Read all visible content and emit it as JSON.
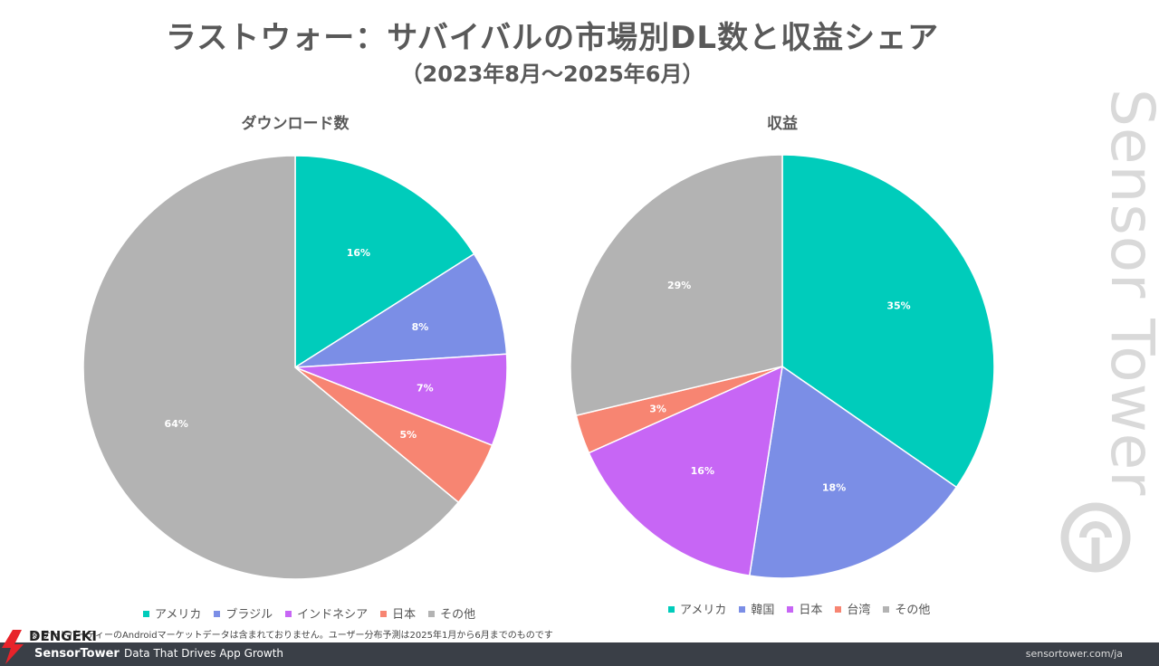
{
  "title": "ラストウォー：サバイバルの市場別DL数と収益シェア",
  "subtitle": "（2023年8月〜2025年6月）",
  "chart_data": [
    {
      "type": "pie",
      "title": "ダウンロード数",
      "categories": [
        "アメリカ",
        "ブラジル",
        "インドネシア",
        "日本",
        "その他"
      ],
      "values": [
        16,
        8,
        7,
        5,
        64
      ],
      "labels": [
        "16%",
        "8%",
        "7%",
        "5%",
        "64%"
      ],
      "colors": [
        "#00ccbb",
        "#7b8ee6",
        "#c766f5",
        "#f78572",
        "#b3b3b3"
      ],
      "legend": "bottom"
    },
    {
      "type": "pie",
      "title": "収益",
      "categories": [
        "アメリカ",
        "韓国",
        "日本",
        "台湾",
        "その他"
      ],
      "values": [
        35,
        18,
        16,
        3,
        29
      ],
      "labels": [
        "35%",
        "18%",
        "16%",
        "3%",
        "29%"
      ],
      "colors": [
        "#00ccbb",
        "#7b8ee6",
        "#c766f5",
        "#f78572",
        "#b3b3b3"
      ],
      "legend": "bottom"
    }
  ],
  "note": "※ サードパーティーのAndroidマーケットデータは含まれておりません。ユーザー分布予測は2025年1月から6月までのものです",
  "footer": {
    "brand": "SensorTower",
    "tagline": "Data That Drives App Growth",
    "url": "sensortower.com/ja"
  },
  "watermark": "Sensor Tower",
  "publisher_logo": "DENGEKI"
}
